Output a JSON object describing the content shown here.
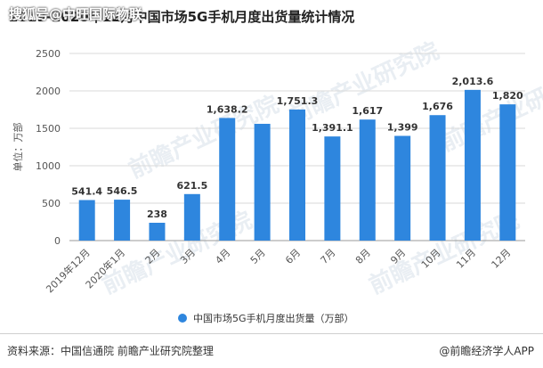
{
  "header": {
    "title": "2019-2020年12月中国市场5G手机月度出货量统计情况",
    "watermark_overlay": "搜狐号@中旺国际物联"
  },
  "footer": {
    "source": "资料来源：中国信通院 前瞻产业研究院整理",
    "credit": "@前瞻经济学人APP"
  },
  "watermark": {
    "text": "前瞻产业研究院"
  },
  "colors": {
    "bar": "#2e86de",
    "grid": "#d9d9d9",
    "axis_text": "#555555"
  },
  "chart_data": {
    "type": "bar",
    "categories": [
      "2019年12月",
      "2020年1月",
      "2月",
      "3月",
      "4月",
      "5月",
      "6月",
      "7月",
      "8月",
      "9月",
      "10月",
      "11月",
      "12月"
    ],
    "series": [
      {
        "name": "中国市场5G手机月度出货量（万部）",
        "values": [
          541.4,
          546.5,
          238,
          621.5,
          1638.2,
          1560,
          1751.3,
          1391.1,
          1617,
          1399,
          1676,
          2013.6,
          1820
        ],
        "labels": [
          "541.4",
          "546.5",
          "238",
          "621.5",
          "1,638.2",
          null,
          "1,751.3",
          "1,391.1",
          "1,617",
          "1,399",
          "1,676",
          "2,013.6",
          "1,820"
        ]
      }
    ],
    "ylabel": "单位：万部",
    "ylim": [
      0,
      2500
    ],
    "yticks": [
      "0",
      "500",
      "1000",
      "1500",
      "2000",
      "2500"
    ],
    "grid": true,
    "legend_position": "bottom"
  }
}
